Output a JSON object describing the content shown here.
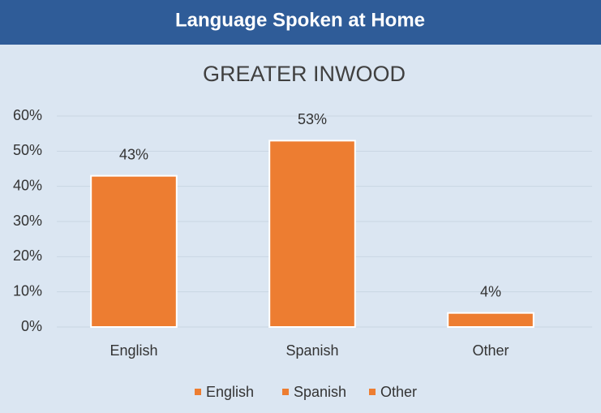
{
  "header": "Language Spoken at Home",
  "chart_data": {
    "type": "bar",
    "title": "GREATER INWOOD",
    "categories": [
      "English",
      "Spanish",
      "Other"
    ],
    "values": [
      43,
      53,
      4
    ],
    "value_labels": [
      "43%",
      "53%",
      "4%"
    ],
    "color": "#ed7d31",
    "ylim": [
      0,
      60
    ],
    "yticks": [
      {
        "value": 0,
        "label": "0%"
      },
      {
        "value": 10,
        "label": "10%"
      },
      {
        "value": 20,
        "label": "20%"
      },
      {
        "value": 30,
        "label": "30%"
      },
      {
        "value": 40,
        "label": "40%"
      },
      {
        "value": 50,
        "label": "50%"
      },
      {
        "value": 60,
        "label": "60%"
      }
    ],
    "grid": true,
    "legend": "bottom"
  }
}
